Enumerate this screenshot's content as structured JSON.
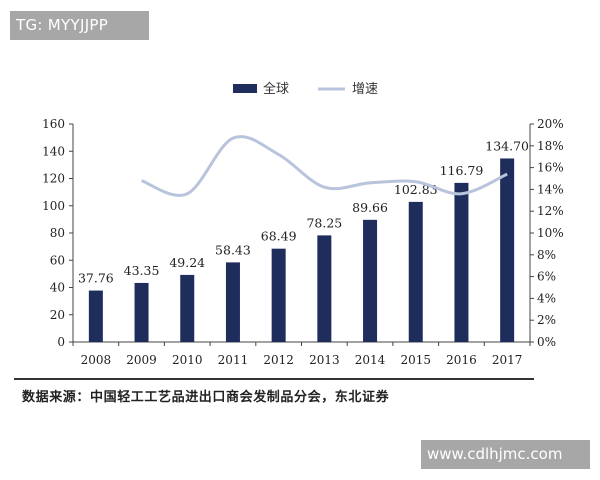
{
  "watermark_top": "TG: MYYJJPP",
  "watermark_bottom": "www.cdlhjmc.com",
  "source_note": "数据来源：中国轻工工艺品进出口商会发制品分会，东北证券",
  "colors": {
    "bar": "#1f2d5c",
    "line": "#b8c4dc",
    "axis": "#444444",
    "text": "#222222"
  },
  "chart_data": {
    "type": "bar",
    "categories": [
      "2008",
      "2009",
      "2010",
      "2011",
      "2012",
      "2013",
      "2014",
      "2015",
      "2016",
      "2017"
    ],
    "series": [
      {
        "name": "全球",
        "type": "bar",
        "axis": "left",
        "values": [
          37.76,
          43.35,
          49.24,
          58.43,
          68.49,
          78.25,
          89.66,
          102.83,
          116.79,
          134.7
        ],
        "labels": [
          "37.76",
          "43.35",
          "49.24",
          "58.43",
          "68.49",
          "78.25",
          "89.66",
          "102.83",
          "116.79",
          "134.70"
        ]
      },
      {
        "name": "增速",
        "type": "line",
        "axis": "right",
        "values": [
          null,
          14.8,
          13.6,
          18.7,
          17.2,
          14.2,
          14.6,
          14.7,
          13.6,
          15.4
        ]
      }
    ],
    "y_left": {
      "min": 0,
      "max": 160,
      "ticks": [
        "0",
        "20",
        "40",
        "60",
        "80",
        "100",
        "120",
        "140",
        "160"
      ]
    },
    "y_right": {
      "min": 0,
      "max": 20,
      "ticks": [
        "0%",
        "2%",
        "4%",
        "6%",
        "8%",
        "10%",
        "12%",
        "14%",
        "16%",
        "18%",
        "20%"
      ]
    },
    "legend_position": "top-center",
    "grid": false
  }
}
